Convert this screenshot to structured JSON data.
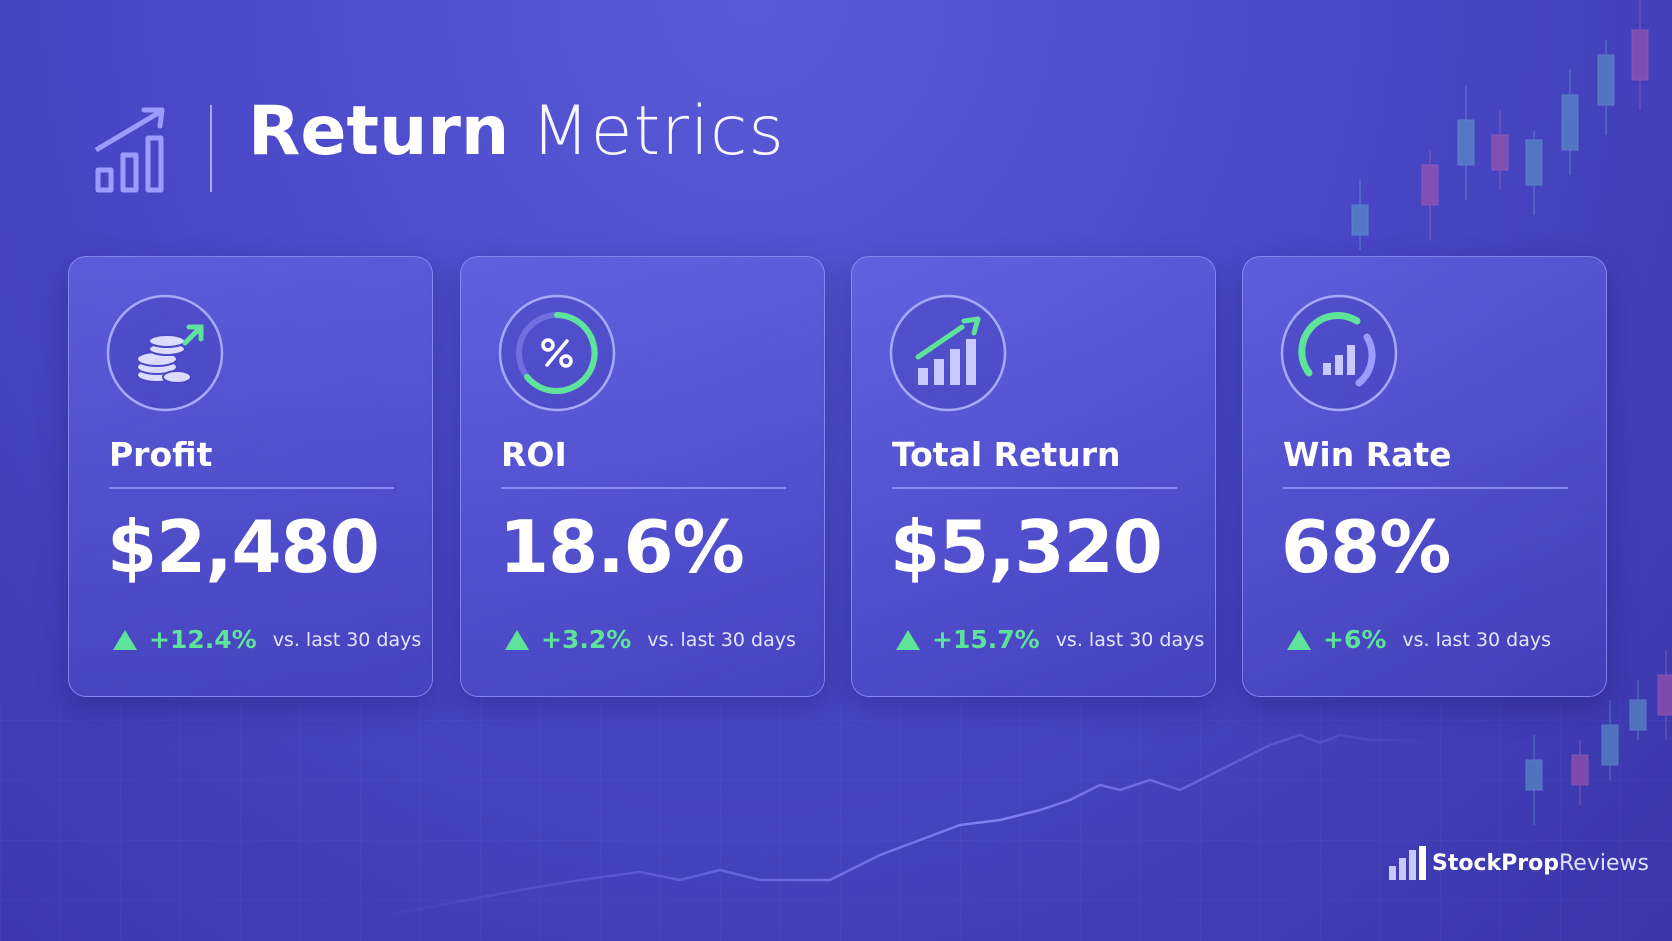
{
  "header": {
    "title_bold": "Return",
    "title_light": "Metrics"
  },
  "cards": [
    {
      "label": "Profit",
      "value": "$2,480",
      "change": "+12.4%",
      "comparison": "vs. last 30 days"
    },
    {
      "label": "ROI",
      "value": "18.6%",
      "change": "+3.2%",
      "comparison": "vs. last 30 days"
    },
    {
      "label": "Total Return",
      "value": "$5,320",
      "change": "+15.7%",
      "comparison": "vs. last 30 days"
    },
    {
      "label": "Win Rate",
      "value": "68%",
      "change": "+6%",
      "comparison": "vs. last 30 days"
    }
  ],
  "brand": {
    "bold": "StockProp",
    "light": "Reviews"
  }
}
